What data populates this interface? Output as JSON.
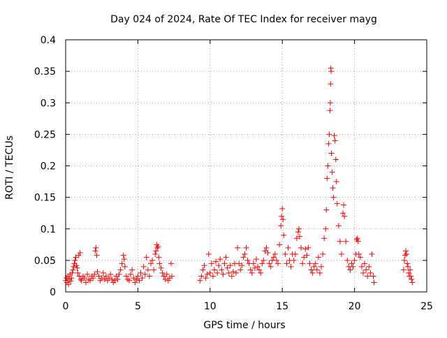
{
  "chart_data": {
    "type": "scatter",
    "title": "Day 024 of 2024, Rate Of TEC Index for receiver mayg",
    "xlabel": "GPS time / hours",
    "ylabel": "ROTI / TECUs",
    "xlim": [
      0,
      25
    ],
    "ylim": [
      0,
      0.4
    ],
    "xticks": [
      0,
      5,
      10,
      15,
      20,
      25
    ],
    "xtick_labels": [
      "0",
      "5",
      "10",
      "15",
      "20",
      "25"
    ],
    "yticks": [
      0,
      0.05,
      0.1,
      0.15,
      0.2,
      0.25,
      0.3,
      0.35,
      0.4
    ],
    "ytick_labels": [
      "0",
      "0.05",
      "0.1",
      "0.15",
      "0.2",
      "0.25",
      "0.3",
      "0.35",
      "0.4"
    ],
    "grid": true,
    "marker": "+",
    "marker_color": "#ff0000",
    "series": [
      {
        "points": [
          [
            0.0,
            0.018
          ],
          [
            0.05,
            0.022
          ],
          [
            0.1,
            0.015
          ],
          [
            0.15,
            0.025
          ],
          [
            0.2,
            0.012
          ],
          [
            0.25,
            0.02
          ],
          [
            0.3,
            0.028
          ],
          [
            0.35,
            0.017
          ],
          [
            0.4,
            0.022
          ],
          [
            0.45,
            0.03
          ],
          [
            0.5,
            0.035
          ],
          [
            0.55,
            0.04
          ],
          [
            0.6,
            0.045
          ],
          [
            0.65,
            0.05
          ],
          [
            0.7,
            0.055
          ],
          [
            0.75,
            0.042
          ],
          [
            0.8,
            0.038
          ],
          [
            0.85,
            0.03
          ],
          [
            0.9,
            0.058
          ],
          [
            0.95,
            0.025
          ],
          [
            1.0,
            0.062
          ],
          [
            1.05,
            0.02
          ],
          [
            1.1,
            0.018
          ],
          [
            1.2,
            0.025
          ],
          [
            1.3,
            0.022
          ],
          [
            1.4,
            0.015
          ],
          [
            1.5,
            0.028
          ],
          [
            1.6,
            0.02
          ],
          [
            1.7,
            0.018
          ],
          [
            1.8,
            0.025
          ],
          [
            1.9,
            0.022
          ],
          [
            2.0,
            0.028
          ],
          [
            2.05,
            0.065
          ],
          [
            2.1,
            0.07
          ],
          [
            2.15,
            0.058
          ],
          [
            2.2,
            0.032
          ],
          [
            2.3,
            0.025
          ],
          [
            2.4,
            0.018
          ],
          [
            2.5,
            0.022
          ],
          [
            2.6,
            0.03
          ],
          [
            2.7,
            0.02
          ],
          [
            2.8,
            0.025
          ],
          [
            2.9,
            0.018
          ],
          [
            3.0,
            0.022
          ],
          [
            3.1,
            0.028
          ],
          [
            3.2,
            0.02
          ],
          [
            3.3,
            0.015
          ],
          [
            3.4,
            0.018
          ],
          [
            3.5,
            0.025
          ],
          [
            3.6,
            0.02
          ],
          [
            3.7,
            0.028
          ],
          [
            3.8,
            0.035
          ],
          [
            3.9,
            0.045
          ],
          [
            4.0,
            0.058
          ],
          [
            4.05,
            0.052
          ],
          [
            4.1,
            0.04
          ],
          [
            4.2,
            0.025
          ],
          [
            4.3,
            0.02
          ],
          [
            4.4,
            0.018
          ],
          [
            4.5,
            0.028
          ],
          [
            4.6,
            0.035
          ],
          [
            4.7,
            0.022
          ],
          [
            4.8,
            0.015
          ],
          [
            4.9,
            0.02
          ],
          [
            5.0,
            0.025
          ],
          [
            5.1,
            0.018
          ],
          [
            5.2,
            0.03
          ],
          [
            5.3,
            0.022
          ],
          [
            5.4,
            0.04
          ],
          [
            5.5,
            0.028
          ],
          [
            5.6,
            0.055
          ],
          [
            5.7,
            0.035
          ],
          [
            5.8,
            0.025
          ],
          [
            5.9,
            0.045
          ],
          [
            6.0,
            0.05
          ],
          [
            6.1,
            0.035
          ],
          [
            6.2,
            0.06
          ],
          [
            6.25,
            0.065
          ],
          [
            6.3,
            0.075
          ],
          [
            6.35,
            0.07
          ],
          [
            6.4,
            0.072
          ],
          [
            6.45,
            0.055
          ],
          [
            6.5,
            0.045
          ],
          [
            6.6,
            0.038
          ],
          [
            6.7,
            0.03
          ],
          [
            6.8,
            0.025
          ],
          [
            6.9,
            0.02
          ],
          [
            7.0,
            0.028
          ],
          [
            7.1,
            0.018
          ],
          [
            7.2,
            0.022
          ],
          [
            7.3,
            0.045
          ],
          [
            7.35,
            0.025
          ],
          [
            9.3,
            0.018
          ],
          [
            9.4,
            0.025
          ],
          [
            9.5,
            0.035
          ],
          [
            9.6,
            0.042
          ],
          [
            9.7,
            0.022
          ],
          [
            9.8,
            0.028
          ],
          [
            9.9,
            0.06
          ],
          [
            10.0,
            0.03
          ],
          [
            10.1,
            0.045
          ],
          [
            10.2,
            0.025
          ],
          [
            10.3,
            0.035
          ],
          [
            10.4,
            0.048
          ],
          [
            10.5,
            0.03
          ],
          [
            10.6,
            0.042
          ],
          [
            10.7,
            0.052
          ],
          [
            10.8,
            0.035
          ],
          [
            10.9,
            0.028
          ],
          [
            11.0,
            0.045
          ],
          [
            11.1,
            0.055
          ],
          [
            11.2,
            0.038
          ],
          [
            11.3,
            0.03
          ],
          [
            11.4,
            0.042
          ],
          [
            11.5,
            0.025
          ],
          [
            11.6,
            0.032
          ],
          [
            11.7,
            0.045
          ],
          [
            11.8,
            0.03
          ],
          [
            11.9,
            0.07
          ],
          [
            12.0,
            0.045
          ],
          [
            12.1,
            0.035
          ],
          [
            12.2,
            0.042
          ],
          [
            12.3,
            0.055
          ],
          [
            12.4,
            0.06
          ],
          [
            12.5,
            0.07
          ],
          [
            12.6,
            0.05
          ],
          [
            12.7,
            0.045
          ],
          [
            12.8,
            0.035
          ],
          [
            12.9,
            0.03
          ],
          [
            13.0,
            0.045
          ],
          [
            13.1,
            0.038
          ],
          [
            13.2,
            0.052
          ],
          [
            13.3,
            0.04
          ],
          [
            13.4,
            0.035
          ],
          [
            13.5,
            0.03
          ],
          [
            13.6,
            0.045
          ],
          [
            13.7,
            0.05
          ],
          [
            13.8,
            0.065
          ],
          [
            13.9,
            0.07
          ],
          [
            14.0,
            0.062
          ],
          [
            14.1,
            0.045
          ],
          [
            14.2,
            0.04
          ],
          [
            14.3,
            0.05
          ],
          [
            14.4,
            0.055
          ],
          [
            14.5,
            0.06
          ],
          [
            14.6,
            0.05
          ],
          [
            14.7,
            0.045
          ],
          [
            14.8,
            0.075
          ],
          [
            14.9,
            0.105
          ],
          [
            14.95,
            0.12
          ],
          [
            15.0,
            0.132
          ],
          [
            15.05,
            0.115
          ],
          [
            15.1,
            0.09
          ],
          [
            15.2,
            0.06
          ],
          [
            15.3,
            0.045
          ],
          [
            15.4,
            0.07
          ],
          [
            15.5,
            0.05
          ],
          [
            15.6,
            0.04
          ],
          [
            15.7,
            0.06
          ],
          [
            15.8,
            0.05
          ],
          [
            15.9,
            0.06
          ],
          [
            16.0,
            0.085
          ],
          [
            16.1,
            0.095
          ],
          [
            16.15,
            0.1
          ],
          [
            16.2,
            0.088
          ],
          [
            16.3,
            0.07
          ],
          [
            16.4,
            0.045
          ],
          [
            16.5,
            0.055
          ],
          [
            16.6,
            0.068
          ],
          [
            16.7,
            0.058
          ],
          [
            16.8,
            0.07
          ],
          [
            16.9,
            0.045
          ],
          [
            17.0,
            0.035
          ],
          [
            17.1,
            0.03
          ],
          [
            17.2,
            0.04
          ],
          [
            17.3,
            0.045
          ],
          [
            17.4,
            0.035
          ],
          [
            17.5,
            0.055
          ],
          [
            17.6,
            0.03
          ],
          [
            17.7,
            0.04
          ],
          [
            17.8,
            0.06
          ],
          [
            17.9,
            0.085
          ],
          [
            18.0,
            0.1
          ],
          [
            18.05,
            0.13
          ],
          [
            18.1,
            0.18
          ],
          [
            18.15,
            0.2
          ],
          [
            18.2,
            0.235
          ],
          [
            18.25,
            0.25
          ],
          [
            18.3,
            0.288
          ],
          [
            18.32,
            0.3
          ],
          [
            18.34,
            0.33
          ],
          [
            18.36,
            0.355
          ],
          [
            18.38,
            0.35
          ],
          [
            18.4,
            0.22
          ],
          [
            18.45,
            0.19
          ],
          [
            18.5,
            0.165
          ],
          [
            18.55,
            0.15
          ],
          [
            18.6,
            0.248
          ],
          [
            18.65,
            0.24
          ],
          [
            18.7,
            0.21
          ],
          [
            18.75,
            0.175
          ],
          [
            18.8,
            0.14
          ],
          [
            18.9,
            0.105
          ],
          [
            19.0,
            0.08
          ],
          [
            19.1,
            0.06
          ],
          [
            19.2,
            0.125
          ],
          [
            19.25,
            0.138
          ],
          [
            19.3,
            0.12
          ],
          [
            19.4,
            0.08
          ],
          [
            19.5,
            0.05
          ],
          [
            19.6,
            0.04
          ],
          [
            19.7,
            0.035
          ],
          [
            19.8,
            0.045
          ],
          [
            19.9,
            0.04
          ],
          [
            20.0,
            0.05
          ],
          [
            20.1,
            0.06
          ],
          [
            20.15,
            0.083
          ],
          [
            20.2,
            0.085
          ],
          [
            20.25,
            0.08
          ],
          [
            20.3,
            0.06
          ],
          [
            20.4,
            0.055
          ],
          [
            20.5,
            0.04
          ],
          [
            20.6,
            0.03
          ],
          [
            20.7,
            0.045
          ],
          [
            20.8,
            0.035
          ],
          [
            20.9,
            0.025
          ],
          [
            21.0,
            0.04
          ],
          [
            21.1,
            0.03
          ],
          [
            21.2,
            0.06
          ],
          [
            21.3,
            0.025
          ],
          [
            21.35,
            0.015
          ],
          [
            23.4,
            0.035
          ],
          [
            23.45,
            0.05
          ],
          [
            23.5,
            0.058
          ],
          [
            23.55,
            0.065
          ],
          [
            23.6,
            0.06
          ],
          [
            23.65,
            0.045
          ],
          [
            23.7,
            0.04
          ],
          [
            23.75,
            0.03
          ],
          [
            23.8,
            0.025
          ],
          [
            23.85,
            0.035
          ],
          [
            23.9,
            0.025
          ],
          [
            23.95,
            0.02
          ],
          [
            24.0,
            0.015
          ]
        ]
      }
    ]
  }
}
